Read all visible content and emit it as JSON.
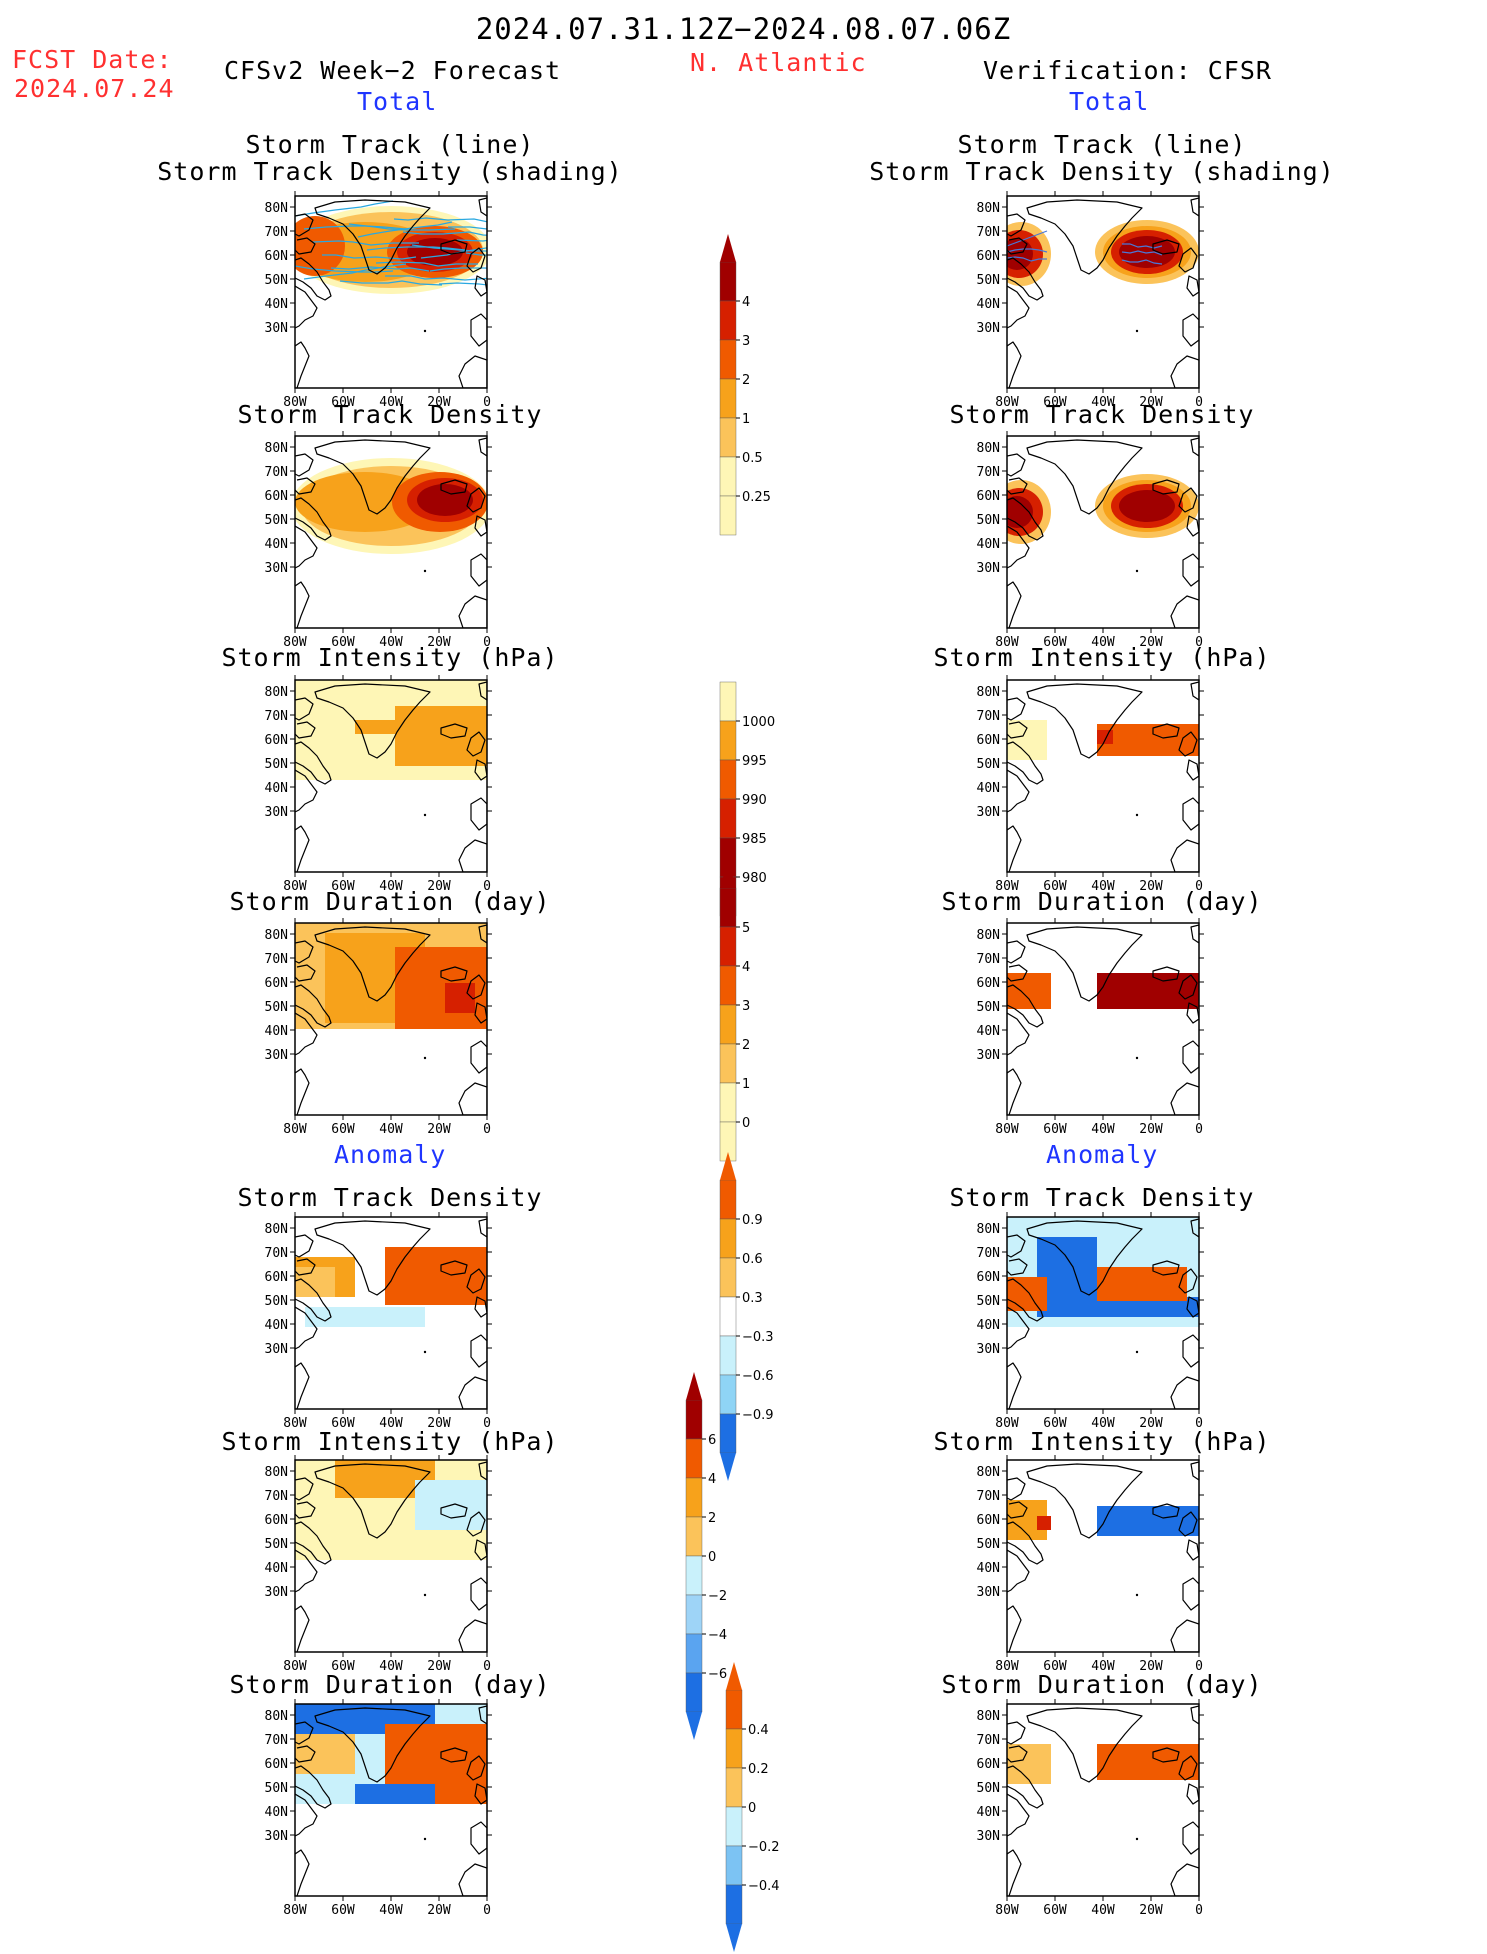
{
  "header": {
    "period": "2024.07.31.12Z−2024.08.07.06Z",
    "fcst_label": "FCST Date:",
    "fcst_date": "2024.07.24",
    "region": "N. Atlantic",
    "left_title": "CFSv2 Week−2 Forecast",
    "right_title": "Verification: CFSR",
    "left_total": "Total",
    "right_total": "Total",
    "left_anomaly": "Anomaly",
    "right_anomaly": "Anomaly"
  },
  "panel_titles": {
    "track_line": "Storm Track (line)",
    "track_shading": "Storm Track Density (shading)",
    "density": "Storm Track Density",
    "intensity": "Storm Intensity (hPa)",
    "duration": "Storm Duration (day)"
  },
  "axes": {
    "lat_labels": [
      "80N",
      "70N",
      "60N",
      "50N",
      "40N",
      "30N"
    ],
    "lon_labels": [
      "80W",
      "60W",
      "40W",
      "20W",
      "0"
    ]
  },
  "colorbars": {
    "density_total": [
      "4",
      "3",
      "2",
      "1",
      "0.5",
      "0.25"
    ],
    "intensity_total": [
      "1000",
      "995",
      "990",
      "985",
      "980"
    ],
    "duration_total": [
      "5",
      "4",
      "3",
      "2",
      "1",
      "0"
    ],
    "density_anom": [
      "0.9",
      "0.6",
      "0.3",
      "−0.3",
      "−0.6",
      "−0.9"
    ],
    "intensity_anom": [
      "6",
      "4",
      "2",
      "0",
      "−2",
      "−4",
      "−6"
    ],
    "duration_anom": [
      "0.4",
      "0.2",
      "0",
      "−0.2",
      "−0.4"
    ]
  },
  "colors": {
    "title_red": "#ff3030",
    "section_blue": "#1f35ff",
    "track_line": "#2aa8e0",
    "dark_red": "#a00000",
    "red": "#d62000",
    "orange_red": "#f05a00",
    "orange": "#f7a21b",
    "light_orange": "#fbc35a",
    "pale_yellow": "#fef6b6",
    "light_blue": "#c9f1fb",
    "blue": "#1d6fe3"
  }
}
